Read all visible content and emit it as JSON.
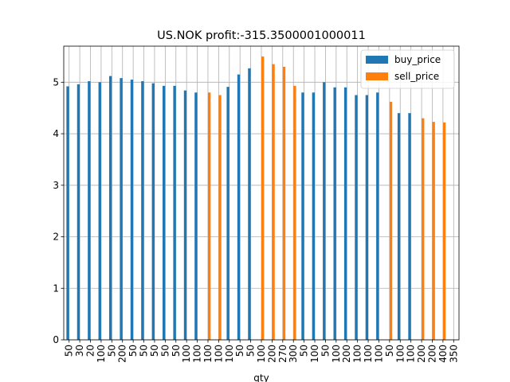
{
  "chart_data": {
    "type": "bar",
    "title": "US.NOK  profit:-315.3500001000011",
    "xlabel": "qty",
    "ylabel": "",
    "ylim": [
      0,
      5.7
    ],
    "yticks": [
      0,
      1,
      2,
      3,
      4,
      5
    ],
    "grid": true,
    "legend_position": "top-right",
    "categories": [
      "50",
      "30",
      "20",
      "100",
      "50",
      "200",
      "50",
      "50",
      "50",
      "50",
      "50",
      "100",
      "100",
      "100",
      "100",
      "100",
      "50",
      "50",
      "100",
      "200",
      "270",
      "300",
      "50",
      "100",
      "50",
      "100",
      "200",
      "100",
      "100",
      "100",
      "50",
      "100",
      "100",
      "200",
      "200",
      "400",
      "350"
    ],
    "series": [
      {
        "name": "buy_price",
        "color": "#1f77b4",
        "values": [
          4.92,
          4.96,
          5.02,
          5.0,
          5.12,
          5.08,
          5.05,
          5.02,
          4.98,
          4.93,
          4.93,
          4.84,
          4.8,
          null,
          null,
          4.91,
          5.15,
          5.27,
          null,
          null,
          null,
          null,
          4.8,
          4.8,
          5.0,
          4.9,
          4.9,
          4.75,
          4.75,
          4.8,
          null,
          4.4,
          4.4,
          null,
          null,
          null,
          null
        ]
      },
      {
        "name": "sell_price",
        "color": "#ff7f0e",
        "values": [
          null,
          null,
          null,
          null,
          null,
          null,
          null,
          null,
          null,
          null,
          null,
          null,
          null,
          4.8,
          4.75,
          null,
          null,
          null,
          5.5,
          5.35,
          5.3,
          4.93,
          null,
          null,
          null,
          null,
          null,
          null,
          null,
          null,
          4.62,
          null,
          null,
          4.3,
          4.23,
          4.22,
          null
        ]
      }
    ]
  }
}
